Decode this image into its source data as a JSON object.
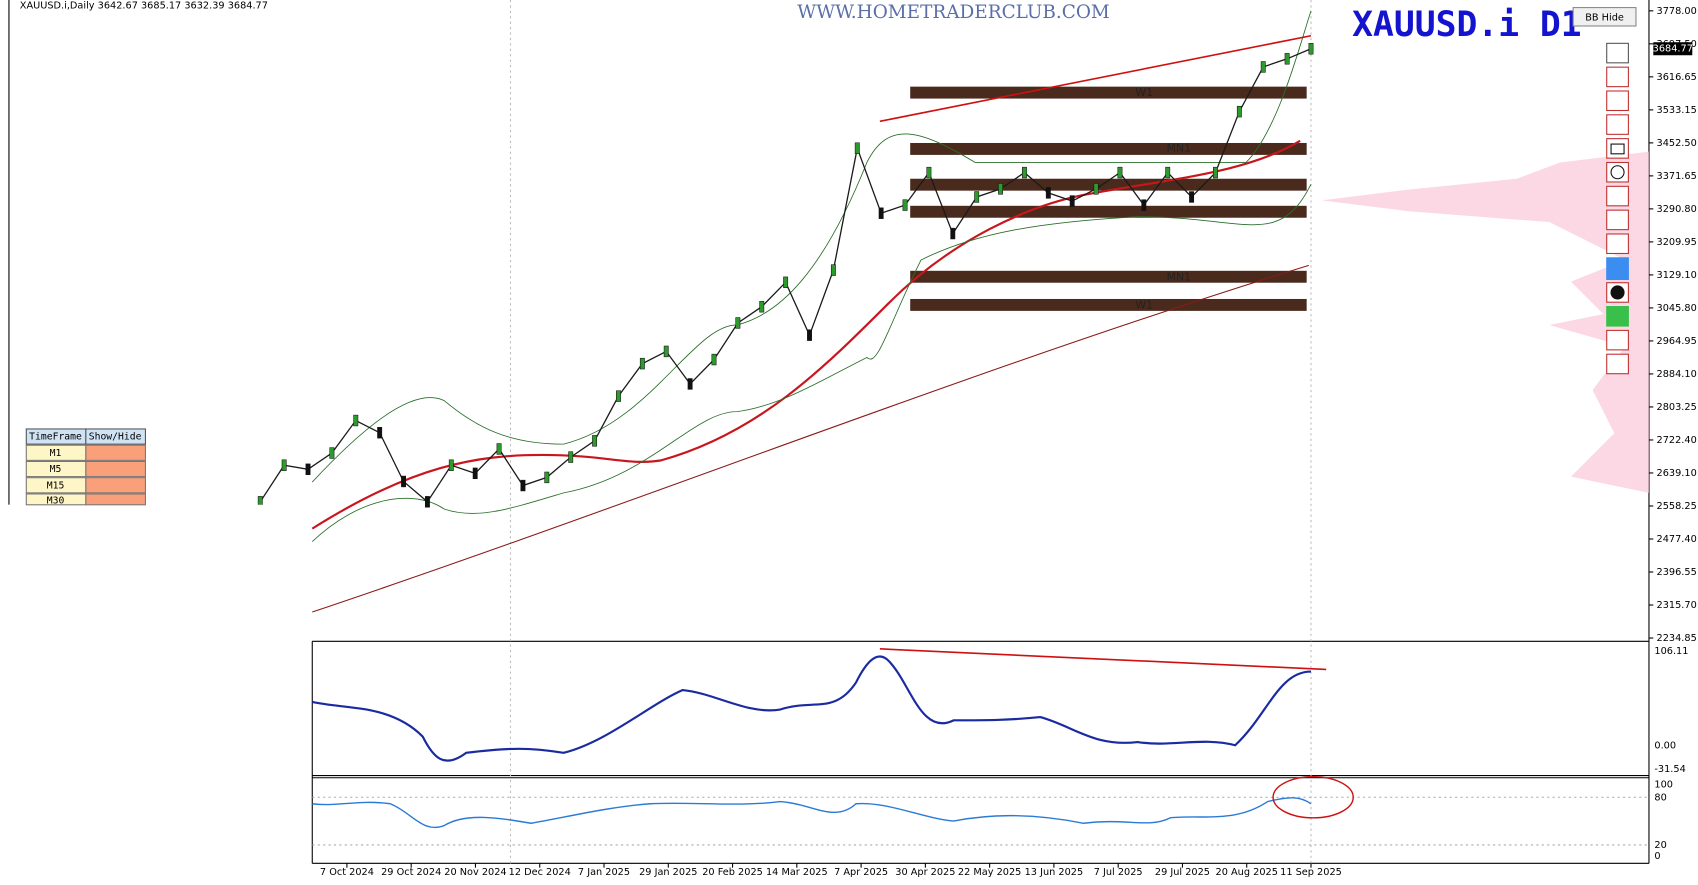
{
  "header": {
    "symbol_info": "XAUUSD.i,Daily  3642.67 3685.17 3632.39 3684.77",
    "watermark": "WWW.HOMETRADERCLUB.COM",
    "title": "XAUUSD.i D1",
    "button": "BB Hide",
    "current_price": "3684.77"
  },
  "price_axis": {
    "ticks": [
      "3778.00",
      "3697.50",
      "3616.65",
      "3533.15",
      "3452.50",
      "3371.65",
      "3290.80",
      "3209.95",
      "3129.10",
      "3045.80",
      "2964.95",
      "2884.10",
      "2803.25",
      "2722.40",
      "2639.10",
      "2558.25",
      "2477.40",
      "2396.55",
      "2315.70",
      "2234.85"
    ]
  },
  "time_axis": {
    "ticks": [
      "7 Oct 2024",
      "29 Oct 2024",
      "20 Nov 2024",
      "12 Dec 2024",
      "7 Jan 2025",
      "29 Jan 2025",
      "20 Feb 2025",
      "14 Mar 2025",
      "7 Apr 2025",
      "30 Apr 2025",
      "22 May 2025",
      "13 Jun 2025",
      "7 Jul 2025",
      "29 Jul 2025",
      "20 Aug 2025",
      "11 Sep 2025"
    ]
  },
  "price_closes": [
    2570,
    2660,
    2650,
    2690,
    2770,
    2740,
    2620,
    2570,
    2660,
    2640,
    2700,
    2610,
    2630,
    2680,
    2720,
    2830,
    2910,
    2940,
    2860,
    2920,
    3010,
    3050,
    3110,
    2980,
    3140,
    3440,
    3280,
    3300,
    3380,
    3230,
    3320,
    3340,
    3380,
    3330,
    3310,
    3340,
    3380,
    3300,
    3380,
    3320,
    3380,
    3530,
    3640,
    3660,
    3684.77
  ],
  "macd_axis": {
    "ticks": [
      "106.11",
      "0.00",
      "-31.54"
    ]
  },
  "rsi_axis": {
    "ticks": [
      "100",
      "80",
      "20",
      "0"
    ]
  },
  "zones": [
    {
      "label": "W1"
    },
    {
      "label": "MN1"
    },
    {
      "label": "MN1"
    },
    {
      "label": "W1"
    }
  ],
  "timeframe_table": {
    "headers": [
      "TimeFrame",
      "Show/Hide"
    ],
    "rows": [
      "M1",
      "M5",
      "M15",
      "M30"
    ]
  }
}
